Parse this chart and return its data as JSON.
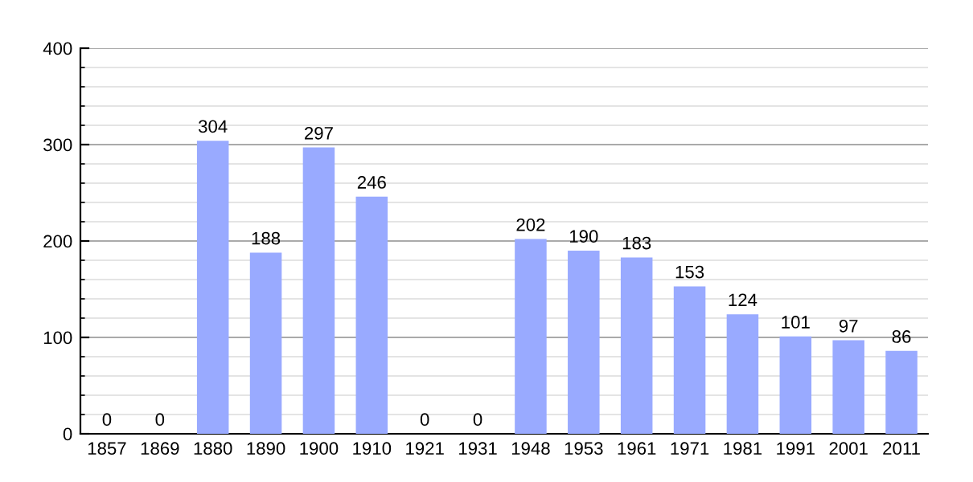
{
  "chart_data": {
    "type": "bar",
    "categories": [
      "1857",
      "1869",
      "1880",
      "1890",
      "1900",
      "1910",
      "1921",
      "1931",
      "1948",
      "1953",
      "1961",
      "1971",
      "1981",
      "1991",
      "2001",
      "2011"
    ],
    "values": [
      0,
      0,
      304,
      188,
      297,
      246,
      0,
      0,
      202,
      190,
      183,
      153,
      124,
      101,
      97,
      86
    ],
    "color": "#99aaff",
    "ylim": [
      0,
      400
    ],
    "yticks": [
      0,
      100,
      200,
      300,
      400
    ],
    "grid": "y",
    "data_labels": true
  }
}
